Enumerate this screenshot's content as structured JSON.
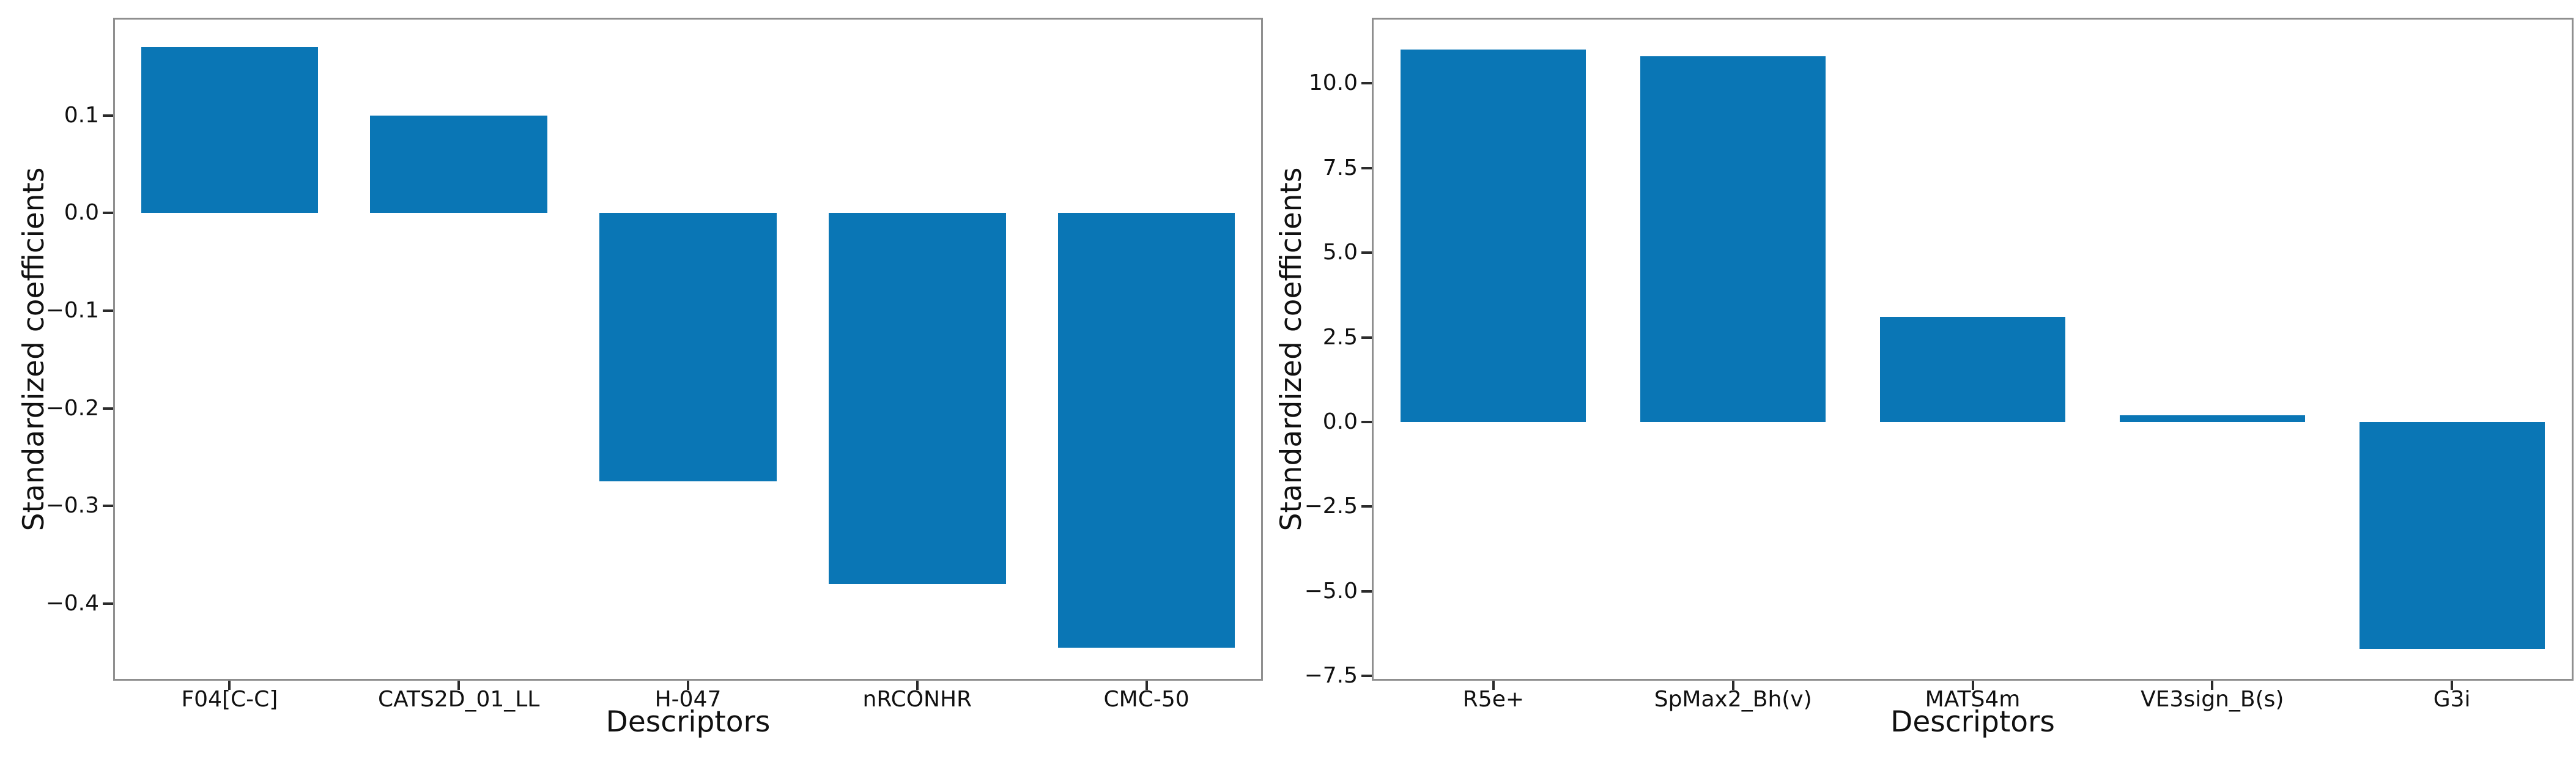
{
  "figure": {
    "description": "Two side-by-side bar charts of standardized regression coefficients for molecular descriptors",
    "background": "#ffffff"
  },
  "colors": {
    "bar": "#0a76b5",
    "spine": "#8f8f8f",
    "tick": "#2b2b2b",
    "text": "#111111"
  },
  "chart_data": [
    {
      "type": "bar",
      "panel": "left",
      "title": "",
      "ylabel": "Standardized coefficients",
      "xlabel": "Descriptors",
      "categories": [
        "F04[C-C]",
        "CATS2D_01_LL",
        "H-047",
        "nRCONHR",
        "CMC-50"
      ],
      "values": [
        0.17,
        0.1,
        -0.275,
        -0.38,
        -0.445
      ],
      "ylim": [
        -0.477,
        0.198
      ],
      "yticks": [
        0.1,
        0.0,
        -0.1,
        -0.2,
        -0.3,
        -0.4
      ],
      "ytick_labels": [
        "0.1",
        "0.0",
        "−0.1",
        "−0.2",
        "−0.3",
        "−0.4"
      ],
      "grid": false,
      "legend": null,
      "bar_color": "#0a76b5"
    },
    {
      "type": "bar",
      "panel": "right",
      "title": "",
      "ylabel": "Standardized coefficients",
      "xlabel": "Descriptors",
      "categories": [
        "R5e+",
        "SpMax2_Bh(v)",
        "MATS4m",
        "VE3sign_B(s)",
        "G3i"
      ],
      "values": [
        11.0,
        10.8,
        3.1,
        0.2,
        -6.7
      ],
      "ylim": [
        -7.585,
        11.885
      ],
      "yticks": [
        10.0,
        7.5,
        5.0,
        2.5,
        0.0,
        -2.5,
        -5.0,
        -7.5
      ],
      "ytick_labels": [
        "10.0",
        "7.5",
        "5.0",
        "2.5",
        "0.0",
        "−2.5",
        "−5.0",
        "−7.5"
      ],
      "grid": false,
      "legend": null,
      "bar_color": "#0a76b5"
    }
  ]
}
